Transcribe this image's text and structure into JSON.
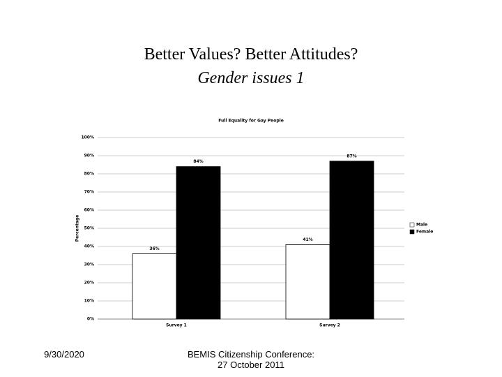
{
  "slide": {
    "title": "Better Values? Better Attitudes?",
    "subtitle": "Gender issues 1"
  },
  "footer": {
    "date": "9/30/2020",
    "text": [
      "BEMIS Citizenship Conference:",
      "27 October 2011"
    ]
  },
  "chart_data": {
    "type": "bar",
    "title": "Full Equality for Gay People",
    "y_label": "Percentage",
    "categories": [
      "Survey 1",
      "Survey 2"
    ],
    "series": [
      {
        "name": "Male",
        "color": "#ffffff",
        "values": [
          36,
          41
        ],
        "value_labels": [
          "36%",
          "41%"
        ]
      },
      {
        "name": "Female",
        "color": "#000000",
        "values": [
          84,
          87
        ],
        "value_labels": [
          "84%",
          "87%"
        ]
      }
    ],
    "ylim": [
      0,
      100
    ],
    "yticks": [
      {
        "value": 0,
        "label": "0%"
      },
      {
        "value": 10,
        "label": "10%"
      },
      {
        "value": 20,
        "label": "20%"
      },
      {
        "value": 30,
        "label": "30%"
      },
      {
        "value": 40,
        "label": "40%"
      },
      {
        "value": 50,
        "label": "50%"
      },
      {
        "value": 60,
        "label": "60%"
      },
      {
        "value": 70,
        "label": "70%"
      },
      {
        "value": 80,
        "label": "80%"
      },
      {
        "value": 90,
        "label": "90%"
      },
      {
        "value": 100,
        "label": "100%"
      }
    ],
    "grid": true,
    "legend": "right"
  }
}
